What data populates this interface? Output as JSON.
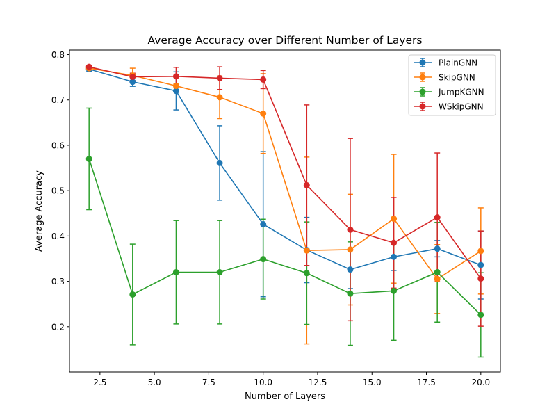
{
  "chart_data": {
    "type": "line",
    "title": "Average Accuracy over Different Number of Layers",
    "xlabel": "Number of Layers",
    "ylabel": "Average Accuracy",
    "xlim": [
      1.1,
      20.9
    ],
    "ylim": [
      0.1,
      0.81
    ],
    "xticks": [
      2.5,
      5.0,
      7.5,
      10.0,
      12.5,
      15.0,
      17.5,
      20.0
    ],
    "xtick_labels": [
      "2.5",
      "5.0",
      "7.5",
      "10.0",
      "12.5",
      "15.0",
      "17.5",
      "20.0"
    ],
    "yticks": [
      0.2,
      0.3,
      0.4,
      0.5,
      0.6,
      0.7,
      0.8
    ],
    "ytick_labels": [
      "0.2",
      "0.3",
      "0.4",
      "0.5",
      "0.6",
      "0.7",
      "0.8"
    ],
    "grid": false,
    "legend_position": "top-right",
    "x": [
      2,
      4,
      6,
      8,
      10,
      12,
      14,
      16,
      18,
      20
    ],
    "series": [
      {
        "name": "PlainGNN",
        "color": "#1f77b4",
        "values": [
          0.768,
          0.74,
          0.72,
          0.561,
          0.426,
          0.369,
          0.326,
          0.354,
          0.372,
          0.336
        ],
        "errors": [
          0.005,
          0.01,
          0.042,
          0.082,
          0.16,
          0.072,
          0.042,
          0.03,
          0.018,
          0.075
        ]
      },
      {
        "name": "SkipGNN",
        "color": "#ff7f0e",
        "values": [
          0.77,
          0.754,
          0.731,
          0.706,
          0.67,
          0.368,
          0.37,
          0.438,
          0.305,
          0.367
        ],
        "errors": [
          0.003,
          0.016,
          0.004,
          0.047,
          0.088,
          0.206,
          0.122,
          0.142,
          0.076,
          0.095
        ]
      },
      {
        "name": "JumpKGNN",
        "color": "#2ca02c",
        "values": [
          0.57,
          0.271,
          0.32,
          0.32,
          0.349,
          0.318,
          0.273,
          0.279,
          0.32,
          0.226
        ],
        "errors": [
          0.112,
          0.111,
          0.114,
          0.114,
          0.088,
          0.113,
          0.114,
          0.109,
          0.11,
          0.093
        ]
      },
      {
        "name": "WSkipGNN",
        "color": "#d62728",
        "values": [
          0.773,
          0.751,
          0.752,
          0.748,
          0.745,
          0.512,
          0.414,
          0.385,
          0.441,
          0.306
        ],
        "errors": [
          0.003,
          0.008,
          0.02,
          0.025,
          0.02,
          0.177,
          0.201,
          0.1,
          0.142,
          0.105
        ]
      }
    ]
  }
}
